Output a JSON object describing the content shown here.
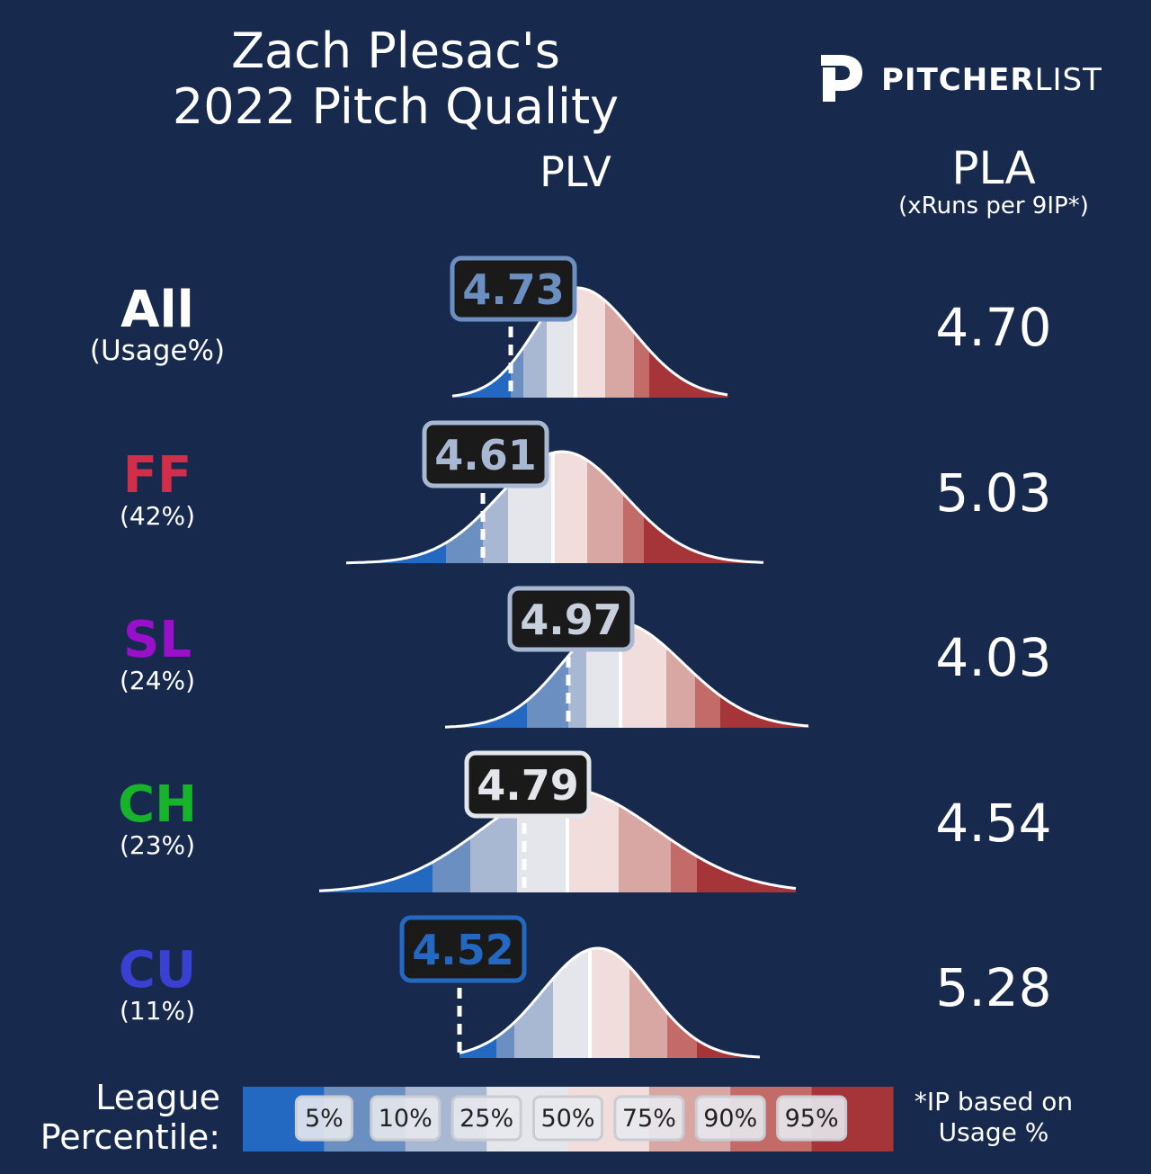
{
  "title": {
    "line1": "Zach Plesac's",
    "line2": "2022 Pitch Quality"
  },
  "logo": {
    "brand_bold": "PITCHER",
    "brand_light": "LIST",
    "icon": "pitcherlist-p-icon"
  },
  "headers": {
    "plv": "PLV",
    "pla": "PLA",
    "pla_sub": "(xRuns per 9IP*)"
  },
  "colors": {
    "background": "#172a4e",
    "percentile_bands": [
      "#2368c1",
      "#6c8fc2",
      "#a9b8d2",
      "#e4e6ec",
      "#f1dddb",
      "#d9a7a3",
      "#c36b69",
      "#a63539"
    ],
    "pitch_colors": {
      "All": "#ffffff",
      "FF": "#d22d49",
      "SL": "#9a0fc9",
      "CH": "#17b42b",
      "CU": "#3a40d1"
    }
  },
  "chart_data": {
    "type": "density-strips",
    "plv_label": "PLV",
    "rows": [
      {
        "pitch": "All",
        "usage": "(Usage%)",
        "plv": "4.73",
        "pla": "4.70",
        "badge_color": "#6c8fc2",
        "badge_text_color": "#6c8fc2"
      },
      {
        "pitch": "FF",
        "usage": "(42%)",
        "plv": "4.61",
        "pla": "5.03",
        "badge_color": "#a9b8d2",
        "badge_text_color": "#a9b8d2"
      },
      {
        "pitch": "SL",
        "usage": "(24%)",
        "plv": "4.97",
        "pla": "4.03",
        "badge_color": "#a9b8d2",
        "badge_text_color": "#c8d0de"
      },
      {
        "pitch": "CH",
        "usage": "(23%)",
        "plv": "4.79",
        "pla": "4.54",
        "badge_color": "#e4e6ec",
        "badge_text_color": "#e4e6ec"
      },
      {
        "pitch": "CU",
        "usage": "(11%)",
        "plv": "4.52",
        "pla": "5.28",
        "badge_color": "#2368c1",
        "badge_text_color": "#2368c1"
      }
    ],
    "legend": {
      "title_line1": "League",
      "title_line2": "Percentile:",
      "percentiles": [
        "5%",
        "10%",
        "25%",
        "50%",
        "75%",
        "90%",
        "95%"
      ]
    },
    "footnote_line1": "*IP based on",
    "footnote_line2": "Usage %"
  }
}
